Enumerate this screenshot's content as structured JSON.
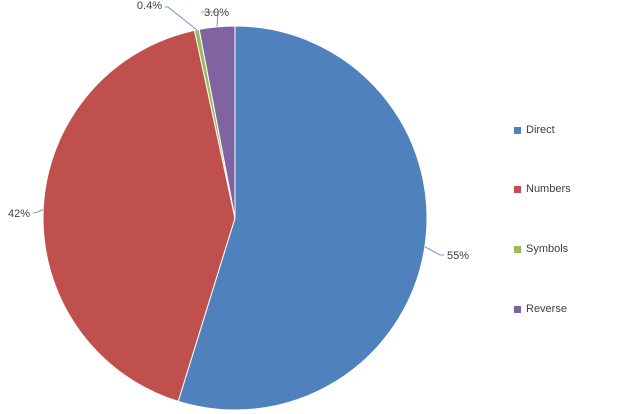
{
  "chart_data": {
    "type": "pie",
    "categories": [
      "Direct",
      "Numbers",
      "Symbols",
      "Reverse"
    ],
    "values": [
      55,
      42,
      0.4,
      3.0
    ],
    "data_labels": [
      "55%",
      "42%",
      "0.4%",
      "3.0%"
    ],
    "colors": [
      "#4F81BD",
      "#C0504D",
      "#9BBB59",
      "#8064A2"
    ],
    "title": "",
    "legend_position": "right",
    "start_angle": "12 o'clock, clockwise"
  }
}
